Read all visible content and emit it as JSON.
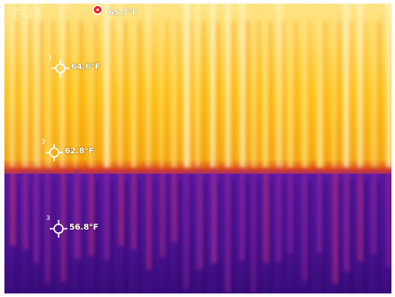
{
  "thermal_image": {
    "brand": "FLIR",
    "palette": {
      "hot_top": "#fff2a0",
      "hot_mid": "#ffc21a",
      "warm_edge": "#f7a30a",
      "transition": "#d4401e",
      "cool": "#6a1ea8",
      "cold": "#2a0a6a"
    },
    "spots": [
      {
        "label": "",
        "temp": "65.7°F",
        "icon": "hot-spot-icon"
      },
      {
        "label": "1",
        "temp": "64.6°F",
        "icon": "crosshair-icon"
      },
      {
        "label": "2",
        "temp": "62.8°F",
        "icon": "crosshair-icon"
      },
      {
        "label": "3",
        "temp": "56.8°F",
        "icon": "crosshair-icon"
      }
    ]
  }
}
